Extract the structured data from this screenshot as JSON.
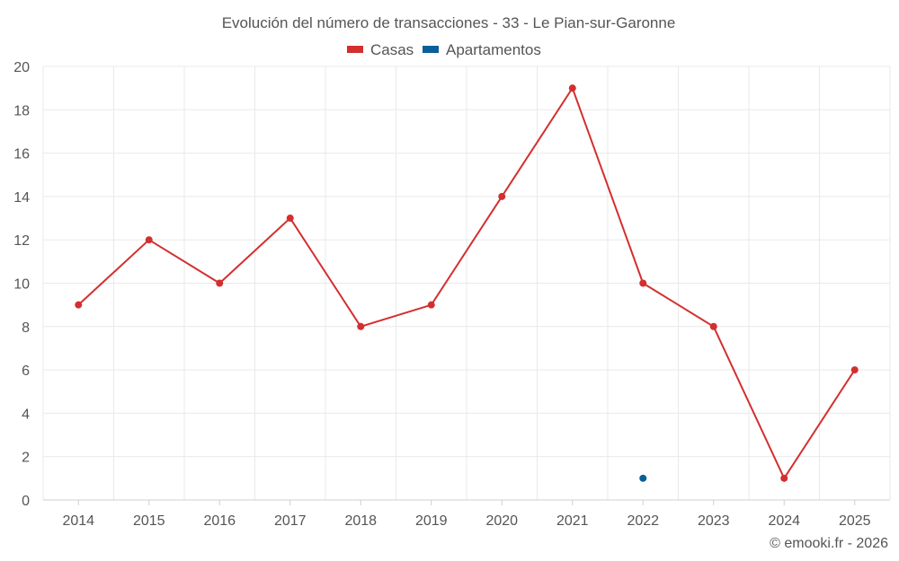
{
  "chart_data": {
    "type": "line",
    "title": "Evolución del número de transacciones - 33 - Le Pian-sur-Garonne",
    "x": [
      "2014",
      "2015",
      "2016",
      "2017",
      "2018",
      "2019",
      "2020",
      "2021",
      "2022",
      "2023",
      "2024",
      "2025"
    ],
    "series": [
      {
        "name": "Casas",
        "color": "#d32f2f",
        "values": [
          9,
          12,
          10,
          13,
          8,
          9,
          14,
          19,
          10,
          8,
          1,
          6
        ]
      },
      {
        "name": "Apartamentos",
        "color": "#0b5f99",
        "values": [
          null,
          null,
          null,
          null,
          null,
          null,
          null,
          null,
          1,
          null,
          null,
          null
        ]
      }
    ],
    "ylim": [
      0,
      20
    ],
    "yticks": [
      0,
      2,
      4,
      6,
      8,
      10,
      12,
      14,
      16,
      18,
      20
    ],
    "grid": true,
    "legend_position": "top-center"
  },
  "credit": "© emooki.fr - 2026"
}
